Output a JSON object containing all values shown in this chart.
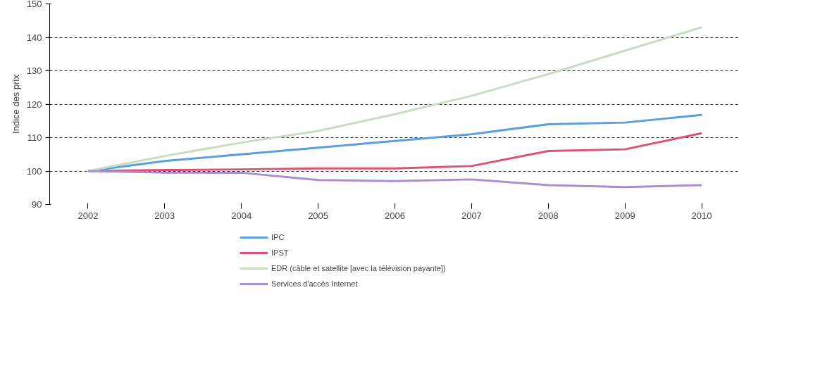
{
  "chart_data": {
    "type": "line",
    "ylabel": "Indice des prix",
    "categories": [
      "2002",
      "2003",
      "2004",
      "2005",
      "2006",
      "2007",
      "2008",
      "2009",
      "2010"
    ],
    "ylim": [
      90,
      150
    ],
    "yticks": [
      90,
      100,
      110,
      120,
      130,
      140,
      150
    ],
    "grid": "y",
    "legend": "bottom",
    "series": [
      {
        "name": "IPC",
        "color": "#5aa0e0",
        "values": [
          100,
          103,
          105,
          107,
          109,
          111,
          114,
          114.5,
          116.8
        ]
      },
      {
        "name": "IPST",
        "color": "#e05070",
        "values": [
          100,
          100.3,
          100.5,
          100.8,
          100.8,
          101.5,
          106,
          106.5,
          111.3
        ]
      },
      {
        "name": "EDR (câble et satellite [avec la télévision payante])",
        "color": "#c8dcc0",
        "values": [
          100,
          104.5,
          108.5,
          112,
          117,
          122.5,
          129,
          136,
          143
        ]
      },
      {
        "name": "Services d'accès Internet",
        "color": "#a890d0",
        "values": [
          100,
          99.5,
          99.5,
          97.3,
          97,
          97.5,
          95.8,
          95.2,
          95.8
        ]
      }
    ]
  }
}
